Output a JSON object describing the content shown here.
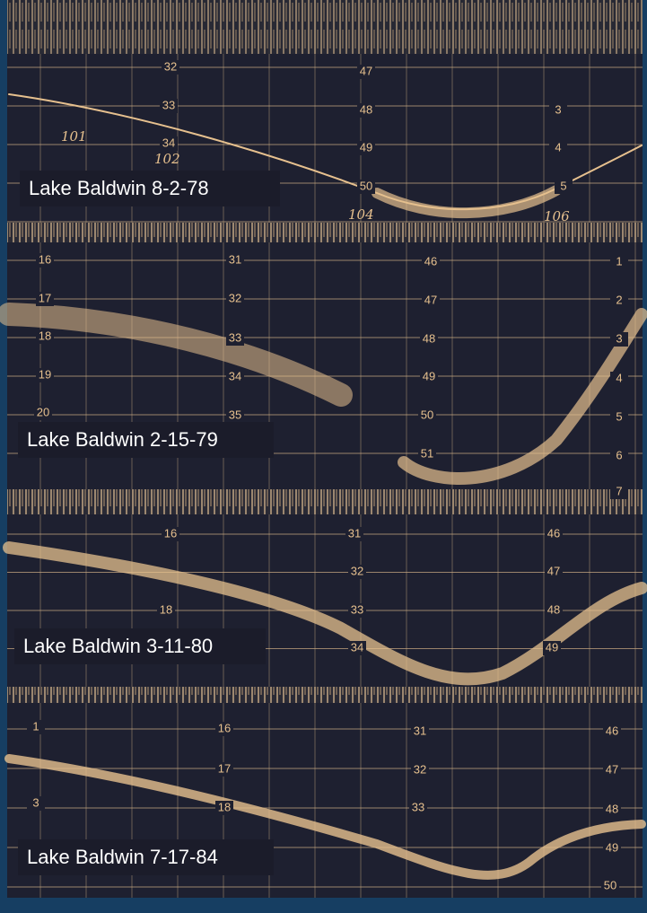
{
  "panels": [
    {
      "label": "Lake Baldwin 8-2-78",
      "scale_labels": [
        "32",
        "33",
        "34",
        "47",
        "48",
        "49",
        "50",
        "3",
        "4",
        "5"
      ],
      "handwritten": [
        "101",
        "102",
        "104",
        "106"
      ]
    },
    {
      "label": "Lake Baldwin 2-15-79",
      "scale_labels": [
        "16",
        "17",
        "18",
        "19",
        "20",
        "31",
        "32",
        "33",
        "34",
        "35",
        "46",
        "47",
        "48",
        "49",
        "50",
        "51",
        "1",
        "2",
        "3",
        "4",
        "5",
        "6",
        "7"
      ]
    },
    {
      "label": "Lake Baldwin 3-11-80",
      "scale_labels": [
        "16",
        "18",
        "31",
        "32",
        "33",
        "34",
        "46",
        "47",
        "48",
        "49"
      ]
    },
    {
      "label": "Lake Baldwin 7-17-84",
      "scale_labels": [
        "1",
        "3",
        "16",
        "17",
        "18",
        "31",
        "32",
        "33",
        "46",
        "47",
        "48",
        "49",
        "50"
      ]
    }
  ]
}
